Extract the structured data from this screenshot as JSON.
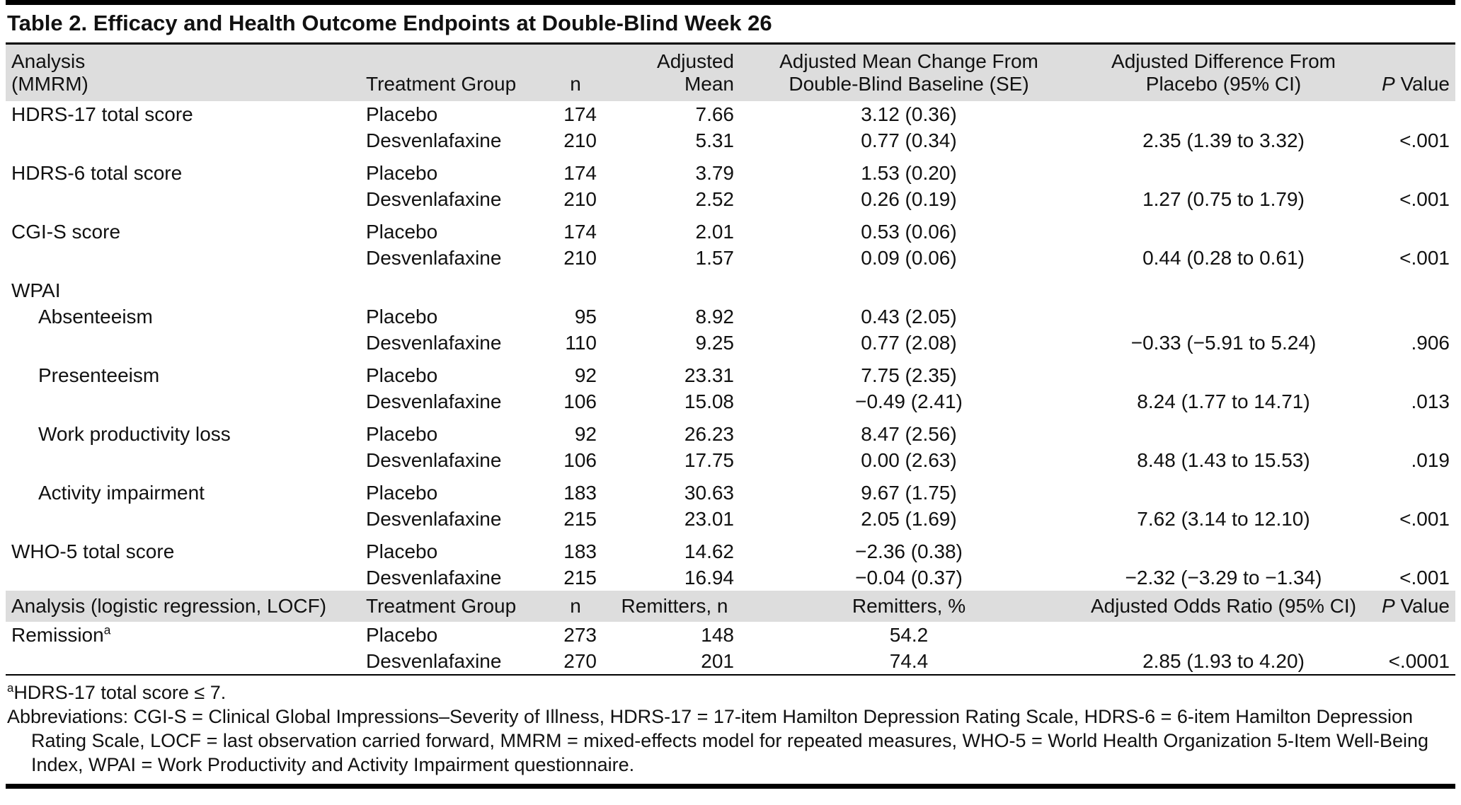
{
  "page": {
    "title": "Table 2. Efficacy and Health Outcome Endpoints at Double-Blind Week 26"
  },
  "table": {
    "header_mmrm": {
      "analysis_l1": "Analysis",
      "analysis_l2": "(MMRM)",
      "treatment": "Treatment Group",
      "n": "n",
      "mean_l1": "Adjusted",
      "mean_l2": "Mean",
      "change_l1": "Adjusted Mean Change From",
      "change_l2": "Double-Blind Baseline (SE)",
      "diff_l1": "Adjusted Difference From",
      "diff_l2": "Placebo (95% CI)",
      "p_italic": "P",
      "p_rest": "Value"
    },
    "header_logistic": {
      "analysis": "Analysis (logistic regression, LOCF)",
      "treatment": "Treatment Group",
      "n": "n",
      "remitters_n": "Remitters, n",
      "remitters_pct": "Remitters, %",
      "odds_ratio": "Adjusted Odds Ratio (95% CI)",
      "p_italic": "P",
      "p_rest": "Value"
    },
    "rows_mmrm": [
      {
        "analysis": "HDRS-17 total score",
        "treatment": "Placebo",
        "n": "174",
        "mean": "7.66",
        "change": "3.12 (0.36)",
        "diff": "",
        "p": ""
      },
      {
        "analysis": "",
        "treatment": "Desvenlafaxine",
        "n": "210",
        "mean": "5.31",
        "change": "0.77 (0.34)",
        "diff": "2.35 (1.39 to 3.32)",
        "p": "<.001"
      },
      {
        "analysis": "HDRS-6 total score",
        "treatment": "Placebo",
        "n": "174",
        "mean": "3.79",
        "change": "1.53 (0.20)",
        "diff": "",
        "p": "",
        "group_start": true
      },
      {
        "analysis": "",
        "treatment": "Desvenlafaxine",
        "n": "210",
        "mean": "2.52",
        "change": "0.26 (0.19)",
        "diff": "1.27 (0.75 to 1.79)",
        "p": "<.001"
      },
      {
        "analysis": "CGI-S score",
        "treatment": "Placebo",
        "n": "174",
        "mean": "2.01",
        "change": "0.53 (0.06)",
        "diff": "",
        "p": "",
        "group_start": true
      },
      {
        "analysis": "",
        "treatment": "Desvenlafaxine",
        "n": "210",
        "mean": "1.57",
        "change": "0.09 (0.06)",
        "diff": "0.44 (0.28 to 0.61)",
        "p": "<.001"
      },
      {
        "analysis": "WPAI",
        "treatment": "",
        "n": "",
        "mean": "",
        "change": "",
        "diff": "",
        "p": "",
        "group_start": true
      },
      {
        "analysis": "Absenteeism",
        "indent": true,
        "treatment": "Placebo",
        "n": "95",
        "mean": "8.92",
        "change": "0.43 (2.05)",
        "diff": "",
        "p": ""
      },
      {
        "analysis": "",
        "treatment": "Desvenlafaxine",
        "n": "110",
        "mean": "9.25",
        "change": "0.77 (2.08)",
        "diff": "−0.33 (−5.91 to 5.24)",
        "p": ".906"
      },
      {
        "analysis": "Presenteeism",
        "indent": true,
        "treatment": "Placebo",
        "n": "92",
        "mean": "23.31",
        "change": "7.75 (2.35)",
        "diff": "",
        "p": "",
        "group_start": true
      },
      {
        "analysis": "",
        "treatment": "Desvenlafaxine",
        "n": "106",
        "mean": "15.08",
        "change": "−0.49 (2.41)",
        "diff": "8.24 (1.77 to 14.71)",
        "p": ".013"
      },
      {
        "analysis": "Work productivity loss",
        "indent": true,
        "treatment": "Placebo",
        "n": "92",
        "mean": "26.23",
        "change": "8.47 (2.56)",
        "diff": "",
        "p": "",
        "group_start": true
      },
      {
        "analysis": "",
        "treatment": "Desvenlafaxine",
        "n": "106",
        "mean": "17.75",
        "change": "0.00 (2.63)",
        "diff": "8.48 (1.43 to 15.53)",
        "p": ".019"
      },
      {
        "analysis": "Activity impairment",
        "indent": true,
        "treatment": "Placebo",
        "n": "183",
        "mean": "30.63",
        "change": "9.67 (1.75)",
        "diff": "",
        "p": "",
        "group_start": true
      },
      {
        "analysis": "",
        "treatment": "Desvenlafaxine",
        "n": "215",
        "mean": "23.01",
        "change": "2.05 (1.69)",
        "diff": "7.62 (3.14 to 12.10)",
        "p": "<.001"
      },
      {
        "analysis": "WHO-5 total score",
        "treatment": "Placebo",
        "n": "183",
        "mean": "14.62",
        "change": "−2.36 (0.38)",
        "diff": "",
        "p": "",
        "group_start": true
      },
      {
        "analysis": "",
        "treatment": "Desvenlafaxine",
        "n": "215",
        "mean": "16.94",
        "change": "−0.04 (0.37)",
        "diff": "−2.32 (−3.29 to −1.34)",
        "p": "<.001"
      }
    ],
    "rows_logistic": [
      {
        "analysis": "Remission",
        "sup": "a",
        "treatment": "Placebo",
        "n": "273",
        "mean": "148",
        "change": "54.2",
        "diff": "",
        "p": ""
      },
      {
        "analysis": "",
        "treatment": "Desvenlafaxine",
        "n": "270",
        "mean": "201",
        "change": "74.4",
        "diff": "2.85 (1.93 to 4.20)",
        "p": "<.0001"
      }
    ]
  },
  "footnotes": {
    "sup": "a",
    "sup_text": "HDRS-17 total score ≤ 7.",
    "abbreviations": "Abbreviations: CGI-S = Clinical Global Impressions–Severity of Illness, HDRS-17 = 17-item Hamilton Depression Rating Scale, HDRS-6 = 6-item Hamilton Depression Rating Scale, LOCF = last observation carried forward, MMRM = mixed-effects model for repeated measures, WHO-5 = World Health Organization 5-Item Well-Being Index, WPAI = Work Productivity and Activity Impairment questionnaire."
  }
}
